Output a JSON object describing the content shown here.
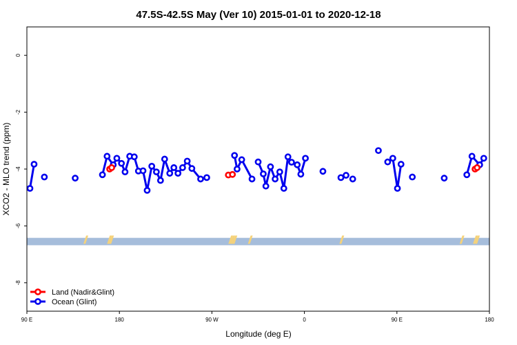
{
  "chart_data": {
    "type": "scatter",
    "title": "47.5S-42.5S May (Ver 10)   2015-01-01 to 2020-12-18",
    "xlabel": "Longitude (deg E)",
    "ylabel": "XCO2 - MLO trend (ppm)",
    "xlim": [
      90,
      540
    ],
    "ylim": [
      -9.0,
      1.0
    ],
    "x_ticks": [
      {
        "value": 90,
        "label": "90 E"
      },
      {
        "value": 180,
        "label": "180"
      },
      {
        "value": 270,
        "label": "90 W"
      },
      {
        "value": 360,
        "label": "0"
      },
      {
        "value": 450,
        "label": "90 E"
      },
      {
        "value": 540,
        "label": "180"
      }
    ],
    "y_ticks": [
      {
        "value": 0,
        "label": "0"
      },
      {
        "value": -2,
        "label": "-2"
      },
      {
        "value": -4,
        "label": "-4"
      },
      {
        "value": -6,
        "label": "-6"
      },
      {
        "value": -8,
        "label": "-8"
      }
    ],
    "band": {
      "y_from": -6.42,
      "y_to": -6.68,
      "color": "#a6bddb"
    },
    "land_marks": {
      "color": "#f5d27a",
      "x": [
        147,
        170,
        172,
        288,
        290,
        292,
        307,
        396,
        513,
        526,
        528
      ]
    },
    "legend": {
      "position": "bottom-left",
      "entries": [
        {
          "name": "Land (Nadir&Glint)",
          "color": "#ff0000"
        },
        {
          "name": "Ocean (Glint)",
          "color": "#0000ee"
        }
      ]
    },
    "series": [
      {
        "name": "Land (Nadir&Glint)",
        "color": "#ff0000",
        "points": [
          [
            170.5,
            -4.0
          ],
          [
            172.5,
            -3.95
          ],
          [
            286,
            -4.21
          ],
          [
            290,
            -4.19
          ],
          [
            526,
            -4.0
          ],
          [
            528,
            -3.95
          ]
        ]
      },
      {
        "name": "Ocean (Glint)",
        "color": "#0000ee",
        "points": [
          [
            93,
            -4.68
          ],
          [
            97,
            -3.83
          ],
          [
            107,
            -4.28
          ],
          [
            137,
            -4.32
          ],
          [
            163.5,
            -4.2
          ],
          [
            168,
            -3.55
          ],
          [
            174,
            -3.85
          ],
          [
            177.5,
            -3.62
          ],
          [
            182,
            -3.8
          ],
          [
            185.5,
            -4.1
          ],
          [
            190,
            -3.55
          ],
          [
            194.5,
            -3.57
          ],
          [
            198.5,
            -4.07
          ],
          [
            203,
            -4.06
          ],
          [
            207,
            -4.75
          ],
          [
            211.5,
            -3.9
          ],
          [
            216,
            -4.1
          ],
          [
            220,
            -4.4
          ],
          [
            224,
            -3.65
          ],
          [
            229,
            -4.15
          ],
          [
            233,
            -3.95
          ],
          [
            237,
            -4.15
          ],
          [
            241.5,
            -3.95
          ],
          [
            246,
            -3.72
          ],
          [
            250.5,
            -3.98
          ],
          [
            259,
            -4.35
          ],
          [
            265,
            -4.3
          ],
          [
            292,
            -3.52
          ],
          [
            294.5,
            -4.0
          ],
          [
            299,
            -3.67
          ],
          [
            309,
            -4.35
          ],
          [
            315,
            -3.75
          ],
          [
            320,
            -4.17
          ],
          [
            322.5,
            -4.6
          ],
          [
            327,
            -3.92
          ],
          [
            331.5,
            -4.35
          ],
          [
            336,
            -4.1
          ],
          [
            340,
            -4.68
          ],
          [
            344,
            -3.57
          ],
          [
            347.5,
            -3.76
          ],
          [
            353,
            -3.85
          ],
          [
            356.5,
            -4.18
          ],
          [
            361,
            -3.62
          ],
          [
            378,
            -4.08
          ],
          [
            395.5,
            -4.3
          ],
          [
            400.5,
            -4.22
          ],
          [
            407,
            -4.35
          ],
          [
            432,
            -3.35
          ],
          [
            441,
            -3.75
          ],
          [
            446,
            -3.62
          ],
          [
            450.5,
            -4.68
          ],
          [
            454,
            -3.83
          ],
          [
            465,
            -4.28
          ],
          [
            496,
            -4.32
          ],
          [
            518,
            -4.2
          ],
          [
            523,
            -3.55
          ],
          [
            530.5,
            -3.85
          ],
          [
            534.5,
            -3.62
          ]
        ],
        "segments": [
          [
            0,
            1
          ],
          [
            4,
            25
          ],
          [
            27,
            30
          ],
          [
            31,
            38
          ],
          [
            38,
            42
          ],
          [
            48,
            51
          ],
          [
            54,
            57
          ]
        ]
      }
    ]
  }
}
